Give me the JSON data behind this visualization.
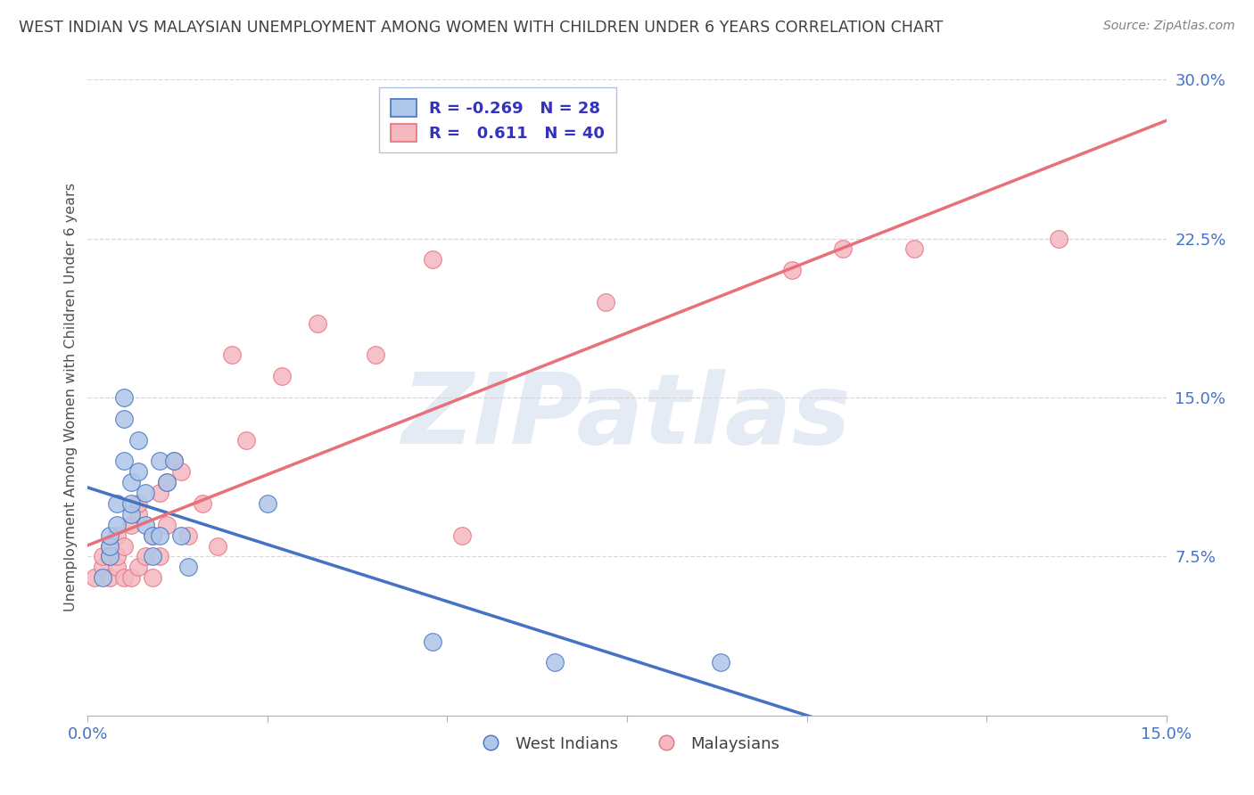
{
  "title": "WEST INDIAN VS MALAYSIAN UNEMPLOYMENT AMONG WOMEN WITH CHILDREN UNDER 6 YEARS CORRELATION CHART",
  "source": "Source: ZipAtlas.com",
  "ylabel": "Unemployment Among Women with Children Under 6 years",
  "xlim": [
    0.0,
    0.15
  ],
  "ylim": [
    0.0,
    0.3
  ],
  "xticks": [
    0.0,
    0.025,
    0.05,
    0.075,
    0.1,
    0.125,
    0.15
  ],
  "xtick_labels": [
    "0.0%",
    "",
    "",
    "",
    "",
    "",
    "15.0%"
  ],
  "yticks": [
    0.0,
    0.075,
    0.15,
    0.225,
    0.3
  ],
  "ytick_labels": [
    "",
    "7.5%",
    "15.0%",
    "22.5%",
    "30.0%"
  ],
  "west_indian_R": -0.269,
  "west_indian_N": 28,
  "malaysian_R": 0.611,
  "malaysian_N": 40,
  "west_indian_color": "#aec6e8",
  "malaysian_color": "#f4b8c1",
  "west_indian_line_color": "#4472c4",
  "malaysian_line_color": "#e8707a",
  "background_color": "#ffffff",
  "grid_color": "#d8d8d8",
  "title_color": "#404040",
  "legend_text_color": "#3333bb",
  "watermark_text": "ZIPatlas",
  "west_indian_x": [
    0.002,
    0.003,
    0.003,
    0.003,
    0.004,
    0.004,
    0.005,
    0.005,
    0.005,
    0.006,
    0.006,
    0.006,
    0.007,
    0.007,
    0.008,
    0.008,
    0.009,
    0.009,
    0.01,
    0.01,
    0.011,
    0.012,
    0.013,
    0.014,
    0.025,
    0.048,
    0.065,
    0.088
  ],
  "west_indian_y": [
    0.065,
    0.075,
    0.08,
    0.085,
    0.09,
    0.1,
    0.14,
    0.15,
    0.12,
    0.11,
    0.095,
    0.1,
    0.115,
    0.13,
    0.09,
    0.105,
    0.075,
    0.085,
    0.12,
    0.085,
    0.11,
    0.12,
    0.085,
    0.07,
    0.1,
    0.035,
    0.025,
    0.025
  ],
  "malaysian_x": [
    0.001,
    0.002,
    0.002,
    0.003,
    0.003,
    0.003,
    0.004,
    0.004,
    0.004,
    0.005,
    0.005,
    0.006,
    0.006,
    0.007,
    0.007,
    0.007,
    0.008,
    0.009,
    0.009,
    0.01,
    0.01,
    0.011,
    0.011,
    0.012,
    0.013,
    0.014,
    0.016,
    0.018,
    0.02,
    0.022,
    0.027,
    0.032,
    0.04,
    0.048,
    0.052,
    0.072,
    0.098,
    0.105,
    0.115,
    0.135
  ],
  "malaysian_y": [
    0.065,
    0.07,
    0.075,
    0.08,
    0.065,
    0.075,
    0.085,
    0.07,
    0.075,
    0.08,
    0.065,
    0.09,
    0.065,
    0.07,
    0.095,
    0.1,
    0.075,
    0.065,
    0.085,
    0.105,
    0.075,
    0.11,
    0.09,
    0.12,
    0.115,
    0.085,
    0.1,
    0.08,
    0.17,
    0.13,
    0.16,
    0.185,
    0.17,
    0.215,
    0.085,
    0.195,
    0.21,
    0.22,
    0.22,
    0.225
  ]
}
